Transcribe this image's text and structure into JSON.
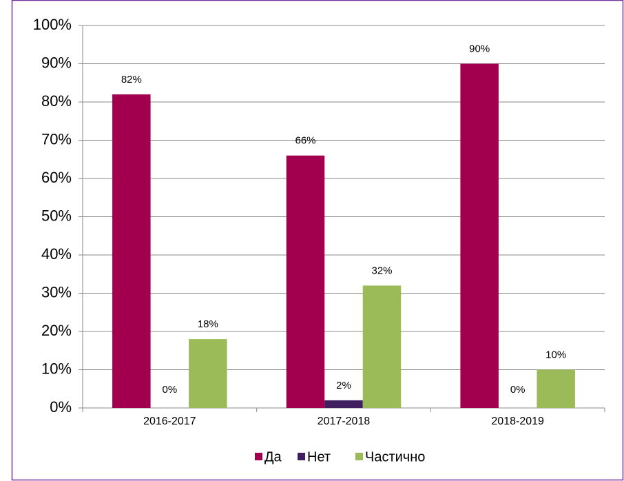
{
  "chart_data": {
    "type": "bar",
    "categories": [
      "2016-2017",
      "2017-2018",
      "2018-2019"
    ],
    "series": [
      {
        "name": "Да",
        "color": "#a2004f",
        "values": [
          82,
          66,
          90
        ],
        "value_labels": [
          "82%",
          "66%",
          "90%"
        ]
      },
      {
        "name": "Нет",
        "color": "#3f1f5f",
        "values": [
          0,
          2,
          0
        ],
        "value_labels": [
          "0%",
          "2%",
          "0%"
        ]
      },
      {
        "name": "Частично",
        "color": "#9bbb59",
        "values": [
          18,
          32,
          10
        ],
        "value_labels": [
          "18%",
          "32%",
          "10%"
        ]
      }
    ],
    "ylim": [
      0,
      100
    ],
    "yticks": [
      {
        "value": 0,
        "label": "0%"
      },
      {
        "value": 10,
        "label": "10%"
      },
      {
        "value": 20,
        "label": "20%"
      },
      {
        "value": 30,
        "label": "30%"
      },
      {
        "value": 40,
        "label": "40%"
      },
      {
        "value": 50,
        "label": "50%"
      },
      {
        "value": 60,
        "label": "60%"
      },
      {
        "value": 70,
        "label": "70%"
      },
      {
        "value": 80,
        "label": "80%"
      },
      {
        "value": 90,
        "label": "90%"
      },
      {
        "value": 100,
        "label": "100%"
      }
    ],
    "grid": true,
    "legend": "bottom"
  }
}
